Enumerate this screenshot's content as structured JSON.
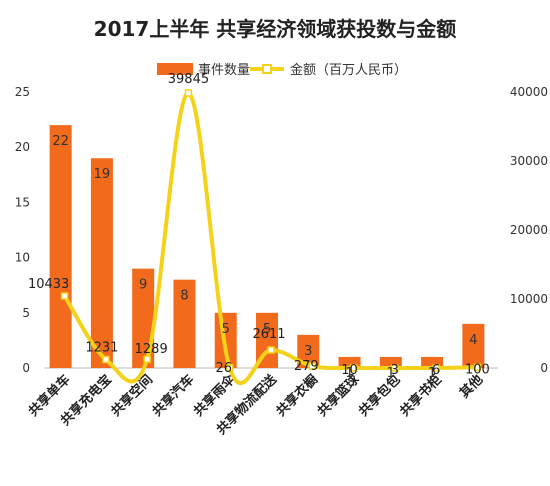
{
  "chart_data": {
    "type": "bar",
    "title": "2017上半年 共享经济领域获投数与金额",
    "categories": [
      "共享单车",
      "共享充电宝",
      "共享空间",
      "共享汽车",
      "共享雨伞",
      "共享物流配送",
      "共享衣橱",
      "共享篮球",
      "共享包包",
      "共享书柜",
      "其他"
    ],
    "series": [
      {
        "name": "事件数量",
        "kind": "bar",
        "axis": "left",
        "color": "#f26b1d",
        "values": [
          22,
          19,
          9,
          8,
          5,
          5,
          3,
          1,
          1,
          1,
          4
        ],
        "labels": [
          "22",
          "19",
          "9",
          "8",
          "5",
          "5",
          "3",
          "1",
          "1",
          "1",
          "4"
        ]
      },
      {
        "name": "金额（百万人民币）",
        "kind": "line",
        "axis": "right",
        "color": "#f5d21a",
        "values": [
          10433,
          1231,
          1289,
          39845,
          26,
          2611,
          279,
          10,
          3,
          6,
          100
        ],
        "labels": [
          "10433",
          "1231",
          "1289",
          "39845",
          "26",
          "2611",
          "279",
          "10",
          "3",
          "6",
          "100"
        ]
      }
    ],
    "ylim_left": [
      0,
      25
    ],
    "yticks_left": [
      "0",
      "5",
      "10",
      "15",
      "20",
      "25"
    ],
    "ylim_right": [
      0,
      40000
    ],
    "yticks_right": [
      "0",
      "10000",
      "20000",
      "30000",
      "40000"
    ],
    "grid": false,
    "legend_position": "top"
  }
}
